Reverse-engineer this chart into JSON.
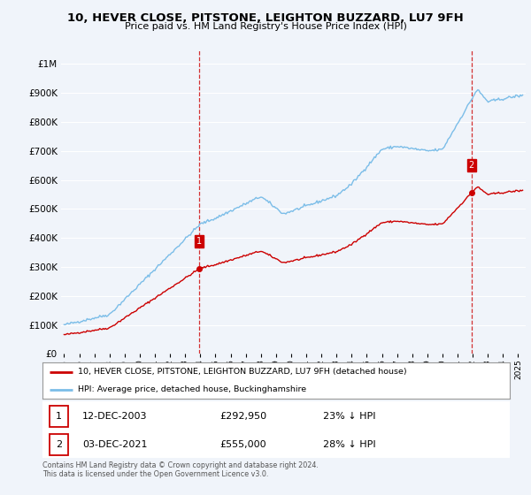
{
  "title": "10, HEVER CLOSE, PITSTONE, LEIGHTON BUZZARD, LU7 9FH",
  "subtitle": "Price paid vs. HM Land Registry's House Price Index (HPI)",
  "legend_line1": "10, HEVER CLOSE, PITSTONE, LEIGHTON BUZZARD, LU7 9FH (detached house)",
  "legend_line2": "HPI: Average price, detached house, Buckinghamshire",
  "sale1_date": "12-DEC-2003",
  "sale1_price": "£292,950",
  "sale1_hpi": "23% ↓ HPI",
  "sale2_date": "03-DEC-2021",
  "sale2_price": "£555,000",
  "sale2_hpi": "28% ↓ HPI",
  "footnote": "Contains HM Land Registry data © Crown copyright and database right 2024.\nThis data is licensed under the Open Government Licence v3.0.",
  "hpi_color": "#7bbde8",
  "sale_color": "#cc0000",
  "marker1_x": 2003.92,
  "marker1_y": 292950,
  "marker2_x": 2021.92,
  "marker2_y": 555000,
  "ylim": [
    0,
    1050000
  ],
  "xlim_start": 1994.8,
  "xlim_end": 2025.5,
  "background_color": "#f0f4fa",
  "grid_color": "#ffffff"
}
